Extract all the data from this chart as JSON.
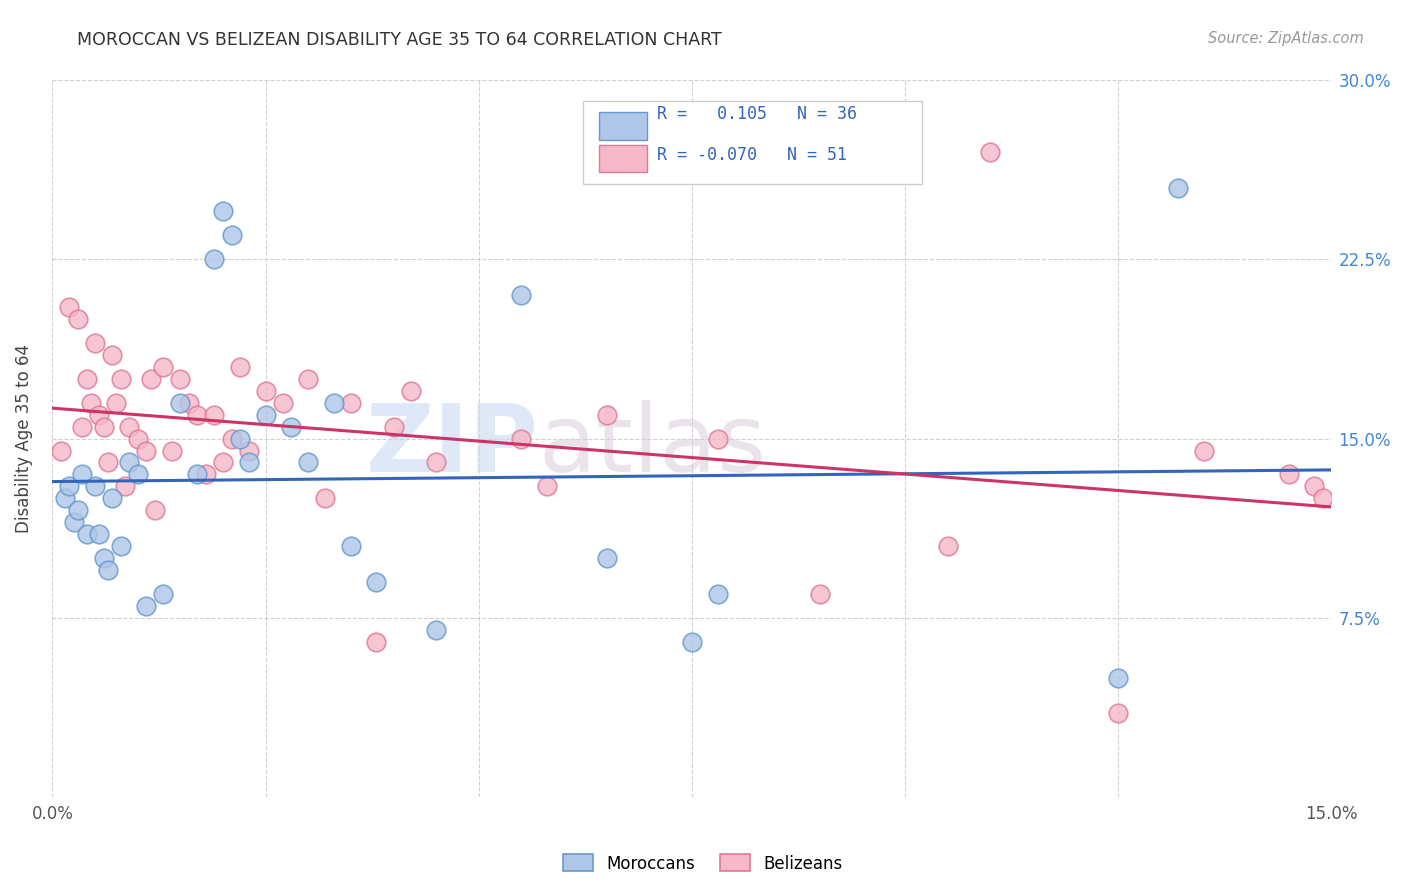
{
  "title": "MOROCCAN VS BELIZEAN DISABILITY AGE 35 TO 64 CORRELATION CHART",
  "source": "Source: ZipAtlas.com",
  "ylabel": "Disability Age 35 to 64",
  "xlim": [
    0.0,
    15.0
  ],
  "ylim": [
    0.0,
    30.0
  ],
  "moroccans_color": "#aec6e8",
  "moroccans_edge": "#6699cc",
  "belizeans_color": "#f4b8c8",
  "belizeans_edge": "#e07898",
  "trend_moroccan_color": "#3366bb",
  "trend_belizean_color": "#cc3366",
  "background_color": "#ffffff",
  "grid_color": "#cccccc",
  "watermark_zip": "ZIP",
  "watermark_atlas": "atlas",
  "moroccans_x": [
    0.15,
    0.2,
    0.25,
    0.3,
    0.35,
    0.4,
    0.5,
    0.55,
    0.6,
    0.65,
    0.7,
    0.8,
    0.9,
    1.0,
    1.1,
    1.3,
    1.5,
    1.7,
    1.9,
    2.0,
    2.1,
    2.2,
    2.3,
    2.5,
    2.8,
    3.0,
    3.3,
    3.5,
    3.8,
    4.5,
    5.5,
    6.5,
    7.5,
    7.8,
    12.5,
    13.2
  ],
  "moroccans_y": [
    12.5,
    13.0,
    11.5,
    12.0,
    13.5,
    11.0,
    13.0,
    11.0,
    10.0,
    9.5,
    12.5,
    10.5,
    14.0,
    13.5,
    8.0,
    8.5,
    16.5,
    13.5,
    22.5,
    24.5,
    23.5,
    15.0,
    14.0,
    16.0,
    15.5,
    14.0,
    16.5,
    10.5,
    9.0,
    7.0,
    21.0,
    10.0,
    6.5,
    8.5,
    5.0,
    25.5
  ],
  "belizeans_x": [
    0.1,
    0.2,
    0.3,
    0.35,
    0.4,
    0.45,
    0.5,
    0.55,
    0.6,
    0.65,
    0.7,
    0.75,
    0.8,
    0.85,
    0.9,
    1.0,
    1.1,
    1.15,
    1.2,
    1.3,
    1.4,
    1.5,
    1.6,
    1.7,
    1.8,
    1.9,
    2.0,
    2.1,
    2.2,
    2.3,
    2.5,
    2.7,
    3.0,
    3.2,
    3.5,
    3.8,
    4.0,
    4.2,
    4.5,
    5.5,
    5.8,
    6.5,
    7.8,
    9.0,
    10.5,
    11.0,
    12.5,
    13.5,
    14.5,
    14.8,
    14.9
  ],
  "belizeans_y": [
    14.5,
    20.5,
    20.0,
    15.5,
    17.5,
    16.5,
    19.0,
    16.0,
    15.5,
    14.0,
    18.5,
    16.5,
    17.5,
    13.0,
    15.5,
    15.0,
    14.5,
    17.5,
    12.0,
    18.0,
    14.5,
    17.5,
    16.5,
    16.0,
    13.5,
    16.0,
    14.0,
    15.0,
    18.0,
    14.5,
    17.0,
    16.5,
    17.5,
    12.5,
    16.5,
    6.5,
    15.5,
    17.0,
    14.0,
    15.0,
    13.0,
    16.0,
    15.0,
    8.5,
    10.5,
    27.0,
    3.5,
    14.5,
    13.5,
    13.0,
    12.5
  ]
}
